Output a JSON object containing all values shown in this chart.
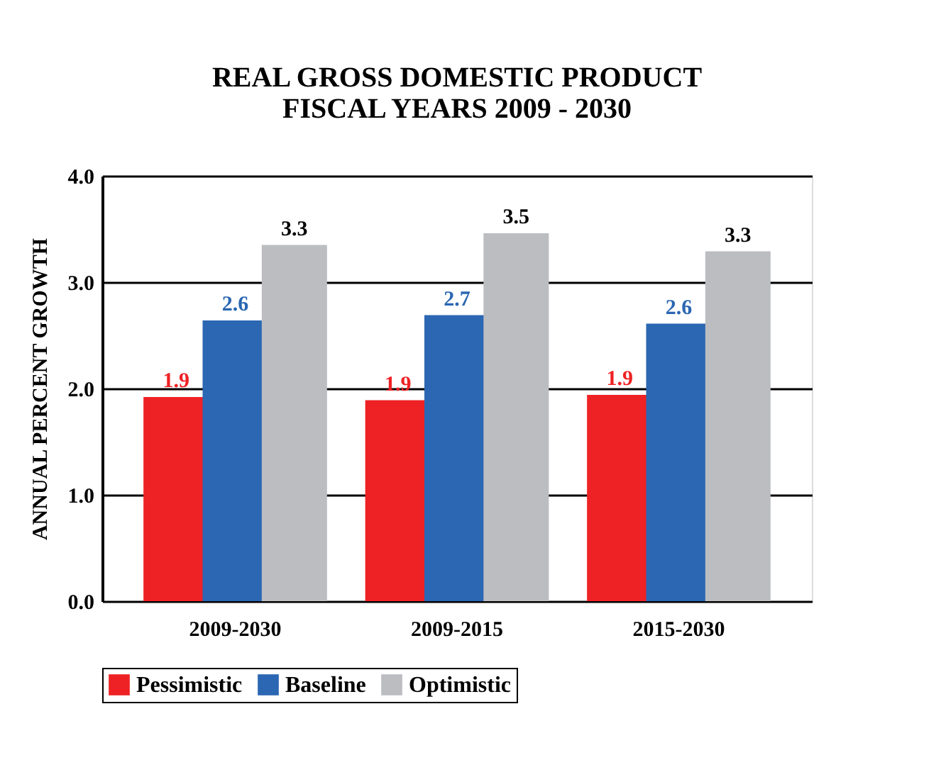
{
  "chart_data": {
    "type": "bar",
    "title": [
      "REAL GROSS DOMESTIC PRODUCT",
      "FISCAL YEARS 2009 - 2030"
    ],
    "ylabel": "ANNUAL PERCENT GROWTH",
    "categories": [
      "2009-2030",
      "2009-2015",
      "2015-2030"
    ],
    "series": [
      {
        "name": "Pessimistic",
        "color": "#ee2224",
        "values": [
          1.92,
          1.89,
          1.94
        ],
        "value_labels": [
          "1.9",
          "1.9",
          "1.9"
        ]
      },
      {
        "name": "Baseline",
        "color": "#2b67b2",
        "values": [
          2.64,
          2.69,
          2.61
        ],
        "value_labels": [
          "2.6",
          "2.7",
          "2.6"
        ]
      },
      {
        "name": "Optimistic",
        "color": "#bcbdc1",
        "values": [
          3.35,
          3.46,
          3.29
        ],
        "value_labels": [
          "3.3",
          "3.5",
          "3.3"
        ]
      }
    ],
    "ylim": [
      0,
      4
    ],
    "yticks": [
      {
        "value": 0,
        "label": "0.0"
      },
      {
        "value": 1,
        "label": "1.0"
      },
      {
        "value": 2,
        "label": "2.0"
      },
      {
        "value": 3,
        "label": "3.0"
      },
      {
        "value": 4,
        "label": "4.0"
      }
    ],
    "grid": "y",
    "legend": "bottom"
  }
}
